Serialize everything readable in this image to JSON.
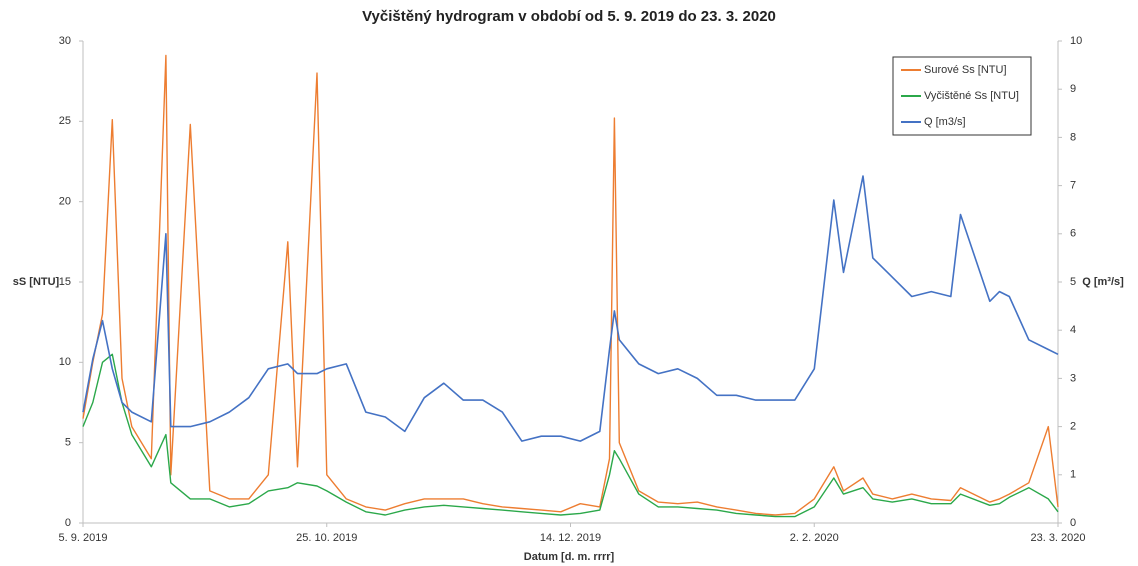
{
  "chart_data": {
    "type": "line",
    "title": "Vyčištěný hydrogram v období od 5. 9. 2019 do 23. 3. 2020",
    "x_label": "Datum [d. m. rrrr]",
    "y_label": "sS [NTU]",
    "y2_label": "Q [m³/s]",
    "x": [
      "2019-09-05",
      "2019-09-07",
      "2019-09-09",
      "2019-09-11",
      "2019-09-13",
      "2019-09-15",
      "2019-09-19",
      "2019-09-22",
      "2019-09-23",
      "2019-09-27",
      "2019-10-01",
      "2019-10-05",
      "2019-10-09",
      "2019-10-13",
      "2019-10-17",
      "2019-10-19",
      "2019-10-23",
      "2019-10-25",
      "2019-10-29",
      "2019-11-02",
      "2019-11-06",
      "2019-11-10",
      "2019-11-14",
      "2019-11-18",
      "2019-11-22",
      "2019-11-26",
      "2019-11-30",
      "2019-12-04",
      "2019-12-08",
      "2019-12-12",
      "2019-12-16",
      "2019-12-20",
      "2019-12-22",
      "2019-12-23",
      "2019-12-24",
      "2019-12-28",
      "2020-01-01",
      "2020-01-05",
      "2020-01-09",
      "2020-01-13",
      "2020-01-17",
      "2020-01-21",
      "2020-01-25",
      "2020-01-29",
      "2020-02-02",
      "2020-02-06",
      "2020-02-08",
      "2020-02-12",
      "2020-02-14",
      "2020-02-18",
      "2020-02-22",
      "2020-02-26",
      "2020-03-01",
      "2020-03-03",
      "2020-03-09",
      "2020-03-11",
      "2020-03-13",
      "2020-03-17",
      "2020-03-21",
      "2020-03-23"
    ],
    "series": [
      {
        "name": "Surové Ss [NTU]",
        "color": "#ed7d31",
        "axis": "y",
        "values": [
          6.5,
          10,
          13,
          25.1,
          9,
          6,
          4,
          29.1,
          3,
          24.8,
          2,
          1.5,
          1.5,
          3,
          17.5,
          3.5,
          28,
          3,
          1.5,
          1,
          0.8,
          1.2,
          1.5,
          1.5,
          1.5,
          1.2,
          1.0,
          0.9,
          0.8,
          0.7,
          1.2,
          1.0,
          4,
          25.2,
          5,
          2,
          1.3,
          1.2,
          1.3,
          1.0,
          0.8,
          0.6,
          0.5,
          0.6,
          1.5,
          3.5,
          2.0,
          2.8,
          1.8,
          1.5,
          1.8,
          1.5,
          1.4,
          2.2,
          1.3,
          1.5,
          1.8,
          2.5,
          6.0,
          1.0
        ]
      },
      {
        "name": "Vyčištěné Ss [NTU]",
        "color": "#2ba84a",
        "axis": "y",
        "values": [
          6.0,
          7.5,
          10,
          10.5,
          7.5,
          5.5,
          3.5,
          5.5,
          2.5,
          1.5,
          1.5,
          1.0,
          1.2,
          2,
          2.2,
          2.5,
          2.3,
          2,
          1.3,
          0.7,
          0.5,
          0.8,
          1.0,
          1.1,
          1.0,
          0.9,
          0.8,
          0.7,
          0.6,
          0.5,
          0.6,
          0.8,
          3,
          4.5,
          4,
          1.8,
          1.0,
          1.0,
          0.9,
          0.8,
          0.6,
          0.5,
          0.4,
          0.4,
          1.0,
          2.8,
          1.8,
          2.2,
          1.5,
          1.3,
          1.5,
          1.2,
          1.2,
          1.8,
          1.1,
          1.2,
          1.6,
          2.2,
          1.5,
          0.7
        ]
      },
      {
        "name": "Q [m3/s]",
        "color": "#4472c4",
        "axis": "y2",
        "values": [
          2.3,
          3.4,
          4.2,
          3.2,
          2.5,
          2.3,
          2.1,
          6.0,
          2.0,
          2.0,
          2.1,
          2.3,
          2.6,
          3.2,
          3.3,
          3.1,
          3.1,
          3.2,
          3.3,
          2.3,
          2.2,
          1.9,
          2.6,
          2.9,
          2.55,
          2.55,
          2.3,
          1.7,
          1.8,
          1.8,
          1.7,
          1.9,
          3.6,
          4.4,
          3.8,
          3.3,
          3.1,
          3.2,
          3.0,
          2.65,
          2.65,
          2.55,
          2.55,
          2.55,
          3.2,
          6.7,
          5.2,
          7.2,
          5.5,
          5.1,
          4.7,
          4.8,
          4.7,
          6.4,
          4.6,
          4.8,
          4.7,
          3.8,
          3.6,
          3.5
        ]
      }
    ],
    "xlim": [
      "2019-09-05",
      "2020-03-23"
    ],
    "xticks": [
      {
        "value": "2019-09-05",
        "label": "5. 9. 2019"
      },
      {
        "value": "2019-10-25",
        "label": "25. 10. 2019"
      },
      {
        "value": "2019-12-14",
        "label": "14. 12. 2019"
      },
      {
        "value": "2020-02-02",
        "label": "2. 2. 2020"
      },
      {
        "value": "2020-03-23",
        "label": "23. 3. 2020"
      }
    ],
    "ylim": [
      0,
      30
    ],
    "yticks": [
      0,
      5,
      10,
      15,
      20,
      25,
      30
    ],
    "y2lim": [
      0,
      10
    ],
    "y2ticks": [
      0,
      1,
      2,
      3,
      4,
      5,
      6,
      7,
      8,
      9,
      10
    ],
    "legend": "top-right",
    "grid": false
  }
}
